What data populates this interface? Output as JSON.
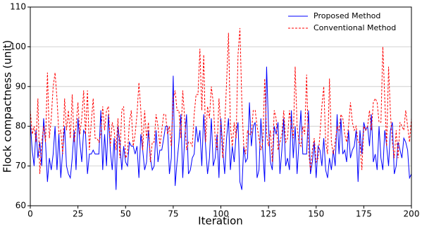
{
  "chart_data": {
    "type": "line",
    "x_label": "Iteration",
    "y_label": "Flock compactness (unit)",
    "x": [
      0,
      1,
      2,
      3,
      4,
      5,
      6,
      7,
      8,
      9,
      10,
      11,
      12,
      13,
      14,
      15,
      16,
      17,
      18,
      19,
      20,
      21,
      22,
      23,
      24,
      25,
      26,
      27,
      28,
      29,
      30,
      31,
      32,
      33,
      34,
      35,
      36,
      37,
      38,
      39,
      40,
      41,
      42,
      43,
      44,
      45,
      46,
      47,
      48,
      49,
      50,
      51,
      52,
      53,
      54,
      55,
      56,
      57,
      58,
      59,
      60,
      61,
      62,
      63,
      64,
      65,
      66,
      67,
      68,
      69,
      70,
      71,
      72,
      73,
      74,
      75,
      76,
      77,
      78,
      79,
      80,
      81,
      82,
      83,
      84,
      85,
      86,
      87,
      88,
      89,
      90,
      91,
      92,
      93,
      94,
      95,
      96,
      97,
      98,
      99,
      100,
      101,
      102,
      103,
      104,
      105,
      106,
      107,
      108,
      109,
      110,
      111,
      112,
      113,
      114,
      115,
      116,
      117,
      118,
      119,
      120,
      121,
      122,
      123,
      124,
      125,
      126,
      127,
      128,
      129,
      130,
      131,
      132,
      133,
      134,
      135,
      136,
      137,
      138,
      139,
      140,
      141,
      142,
      143,
      144,
      145,
      146,
      147,
      148,
      149,
      150,
      151,
      152,
      153,
      154,
      155,
      156,
      157,
      158,
      159,
      160,
      161,
      162,
      163,
      164,
      165,
      166,
      167,
      168,
      169,
      170,
      171,
      172,
      173,
      174,
      175,
      176,
      177,
      178,
      179,
      180,
      181,
      182,
      183,
      184,
      185,
      186,
      187,
      188,
      189,
      190,
      191,
      192,
      193,
      194,
      195,
      196,
      197,
      198,
      199,
      200
    ],
    "series": [
      {
        "name": "Proposed Method",
        "color": "#0000ff",
        "linestyle": "solid",
        "values": [
          81,
          74,
          70,
          79,
          72,
          76,
          70,
          82,
          76,
          66,
          72,
          69,
          73,
          80,
          69,
          78,
          67,
          74,
          80,
          70,
          68,
          67,
          72,
          79,
          69,
          82,
          76,
          71,
          79,
          78,
          68,
          73,
          73,
          74,
          73,
          73,
          73,
          84,
          69,
          78,
          70,
          83,
          74,
          69,
          77,
          64,
          80,
          76,
          69,
          75,
          71,
          70,
          76,
          75,
          75,
          73,
          75,
          67,
          78,
          74,
          69,
          71,
          79,
          72,
          69,
          70,
          79,
          71,
          74,
          74,
          77,
          80,
          80,
          68,
          72,
          92.7,
          65,
          71,
          76,
          83,
          67,
          77,
          83,
          68,
          69,
          72,
          73,
          80,
          76,
          79,
          70,
          83,
          75,
          68,
          72,
          82,
          70,
          72,
          78,
          67,
          82,
          74,
          68,
          77,
          82,
          69,
          75,
          71,
          78,
          81,
          66,
          64,
          75,
          71,
          72,
          86,
          75,
          80,
          81,
          67,
          69,
          82,
          74,
          66,
          95,
          80,
          71,
          69,
          80,
          78,
          81,
          68,
          74,
          82,
          70,
          72,
          69,
          84,
          72,
          80,
          68,
          76,
          84,
          73,
          73,
          73,
          84,
          68,
          71,
          76,
          67,
          75,
          74,
          70,
          77,
          69,
          67,
          72,
          69,
          74,
          70,
          83,
          73,
          82,
          73,
          74,
          71,
          79,
          72,
          74,
          75,
          79,
          66,
          79,
          73,
          81,
          79,
          80,
          75,
          83,
          71,
          73,
          69,
          80,
          72,
          69,
          79,
          75,
          70,
          79,
          81,
          68,
          70,
          76,
          74,
          72,
          77,
          76,
          74,
          67,
          68
        ]
      },
      {
        "name": "Conventional Method",
        "color": "#ff0000",
        "linestyle": "dashed",
        "values": [
          84,
          78,
          80,
          76,
          87,
          68,
          76,
          80,
          76,
          93.5,
          77,
          82,
          90,
          93.5,
          87,
          78,
          79,
          73,
          87,
          79,
          84,
          77,
          88,
          76,
          80,
          86,
          78,
          82,
          89,
          78,
          89,
          74,
          81,
          87,
          77,
          77,
          76,
          78,
          85,
          79,
          84,
          85,
          75,
          81,
          79,
          74,
          82,
          72,
          84,
          85,
          72,
          73,
          81,
          84,
          75,
          78,
          83,
          91,
          84,
          74,
          84,
          77,
          81,
          71,
          76,
          76,
          83,
          80,
          75,
          79,
          83,
          83,
          78,
          80,
          75,
          87,
          89,
          84,
          84,
          77,
          89,
          82,
          74,
          76,
          76,
          75,
          83,
          88,
          88,
          99.5,
          84,
          98,
          76,
          85,
          82,
          90,
          86,
          77,
          74,
          87,
          80,
          72,
          80,
          91,
          103.5,
          80,
          75,
          81,
          77,
          98,
          104.7,
          86,
          75,
          73,
          79,
          78,
          78,
          84,
          84,
          80,
          77,
          74,
          76,
          92,
          78,
          75,
          79,
          71,
          84,
          82,
          74,
          76,
          78,
          84,
          76,
          77,
          84,
          80,
          77,
          95,
          80,
          76,
          75,
          80,
          78,
          93,
          74,
          69,
          74,
          77,
          71,
          72,
          78,
          85,
          90,
          76,
          73,
          92,
          76,
          73,
          76,
          80,
          79,
          83,
          82,
          78,
          76,
          80,
          86,
          81,
          79,
          80,
          76,
          76,
          69,
          80,
          79,
          80,
          84,
          79,
          86,
          87,
          86,
          81,
          81,
          100,
          87,
          75,
          95,
          83,
          76,
          72,
          79,
          72,
          81,
          80,
          79,
          84,
          80,
          76,
          82
        ]
      }
    ],
    "xlim": [
      0,
      200
    ],
    "xticks": [
      0,
      25,
      50,
      75,
      100,
      125,
      150,
      175,
      200
    ],
    "ylim": [
      60,
      110
    ],
    "yticks": [
      60,
      70,
      80,
      90,
      100,
      110
    ],
    "grid": true,
    "legend": "upper right"
  }
}
